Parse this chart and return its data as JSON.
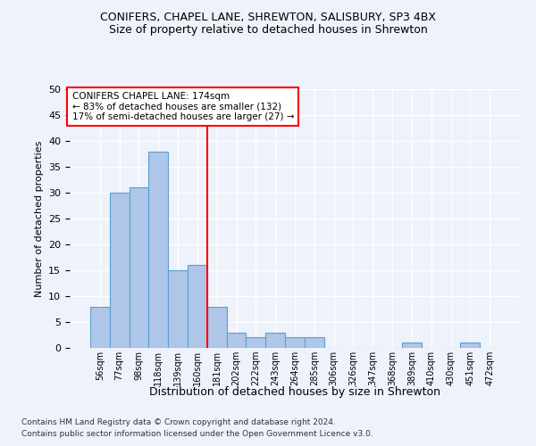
{
  "title1": "CONIFERS, CHAPEL LANE, SHREWTON, SALISBURY, SP3 4BX",
  "title2": "Size of property relative to detached houses in Shrewton",
  "xlabel": "Distribution of detached houses by size in Shrewton",
  "ylabel": "Number of detached properties",
  "footnote1": "Contains HM Land Registry data © Crown copyright and database right 2024.",
  "footnote2": "Contains public sector information licensed under the Open Government Licence v3.0.",
  "categories": [
    "56sqm",
    "77sqm",
    "98sqm",
    "118sqm",
    "139sqm",
    "160sqm",
    "181sqm",
    "202sqm",
    "222sqm",
    "243sqm",
    "264sqm",
    "285sqm",
    "306sqm",
    "326sqm",
    "347sqm",
    "368sqm",
    "389sqm",
    "410sqm",
    "430sqm",
    "451sqm",
    "472sqm"
  ],
  "values": [
    8,
    30,
    31,
    38,
    15,
    16,
    8,
    3,
    2,
    3,
    2,
    2,
    0,
    0,
    0,
    0,
    1,
    0,
    0,
    1,
    0
  ],
  "bar_color": "#aec6e8",
  "bar_edge_color": "#5a9fd4",
  "vline_color": "red",
  "annotation_text1": "CONIFERS CHAPEL LANE: 174sqm",
  "annotation_text2": "← 83% of detached houses are smaller (132)",
  "annotation_text3": "17% of semi-detached houses are larger (27) →",
  "ylim": [
    0,
    50
  ],
  "yticks": [
    0,
    5,
    10,
    15,
    20,
    25,
    30,
    35,
    40,
    45,
    50
  ],
  "bg_color": "#eef2fa",
  "plot_bg_color": "#eef2fa",
  "grid_color": "#ffffff",
  "vline_bar_index": 5
}
